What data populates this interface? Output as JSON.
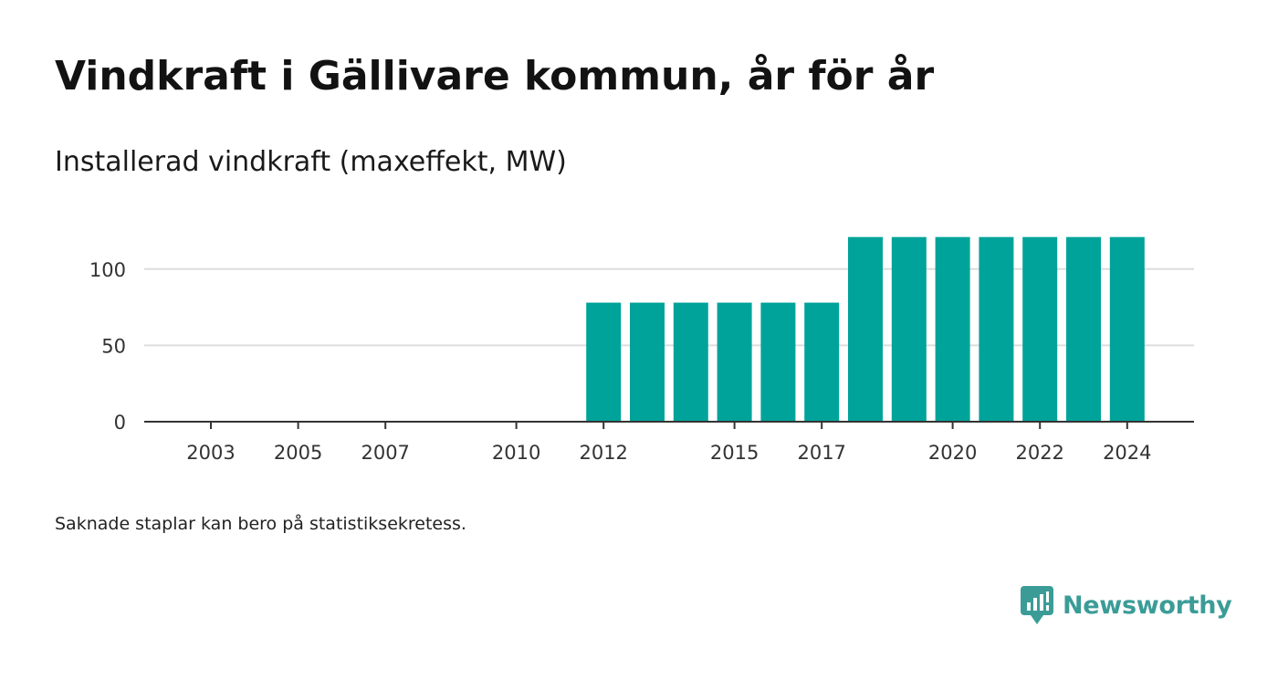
{
  "title": "Vindkraft i Gällivare kommun, år för år",
  "subtitle": "Installerad vindkraft (maxeffekt, MW)",
  "footnote": "Saknade staplar kan bero på statistiksekretess.",
  "brand": {
    "name": "Newsworthy",
    "icon": "newsworthy-logo-icon",
    "color": "#3b9c97"
  },
  "colors": {
    "bar": "#00a39a",
    "grid": "#dddddd",
    "axis": "#333333",
    "tick_text": "#333333"
  },
  "chart_data": {
    "type": "bar",
    "title": "Vindkraft i Gällivare kommun, år för år",
    "subtitle": "Installerad vindkraft (maxeffekt, MW)",
    "xlabel": "",
    "ylabel": "",
    "categories": [
      "2003",
      "2004",
      "2005",
      "2006",
      "2007",
      "2008",
      "2009",
      "2010",
      "2011",
      "2012",
      "2013",
      "2014",
      "2015",
      "2016",
      "2017",
      "2018",
      "2019",
      "2020",
      "2021",
      "2022",
      "2023",
      "2024"
    ],
    "values": [
      0,
      0,
      0,
      0,
      0,
      0,
      0,
      0,
      0,
      78,
      78,
      78,
      78,
      78,
      78,
      121,
      121,
      121,
      121,
      121,
      121,
      121
    ],
    "x_tick_labels": [
      "2003",
      "2005",
      "2007",
      "2010",
      "2012",
      "2015",
      "2017",
      "2020",
      "2022",
      "2024"
    ],
    "y_ticks": [
      0,
      50,
      100
    ],
    "ylim": [
      0,
      121
    ],
    "grid": true,
    "legend": "none"
  }
}
